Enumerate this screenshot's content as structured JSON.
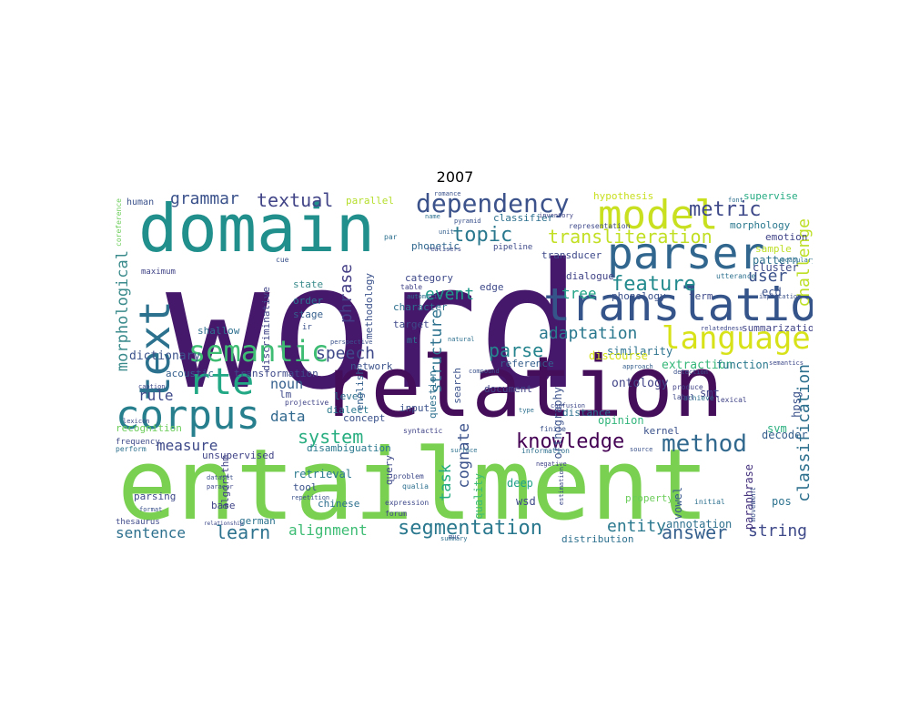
{
  "title": "2007",
  "words": [
    {
      "t": "word",
      "c": "#46186c"
    },
    {
      "t": "entailment",
      "c": "#7ad151"
    },
    {
      "t": "relation",
      "c": "#440e5b"
    },
    {
      "t": "domain",
      "c": "#21908d"
    },
    {
      "t": "translation",
      "c": "#35548a"
    },
    {
      "t": "parser",
      "c": "#31668e"
    },
    {
      "t": "model",
      "c": "#c8e020"
    },
    {
      "t": "corpus",
      "c": "#277f8e"
    },
    {
      "t": "text",
      "c": "#2c728e"
    },
    {
      "t": "rte",
      "c": "#22a884"
    },
    {
      "t": "language",
      "c": "#d8e219"
    },
    {
      "t": "semantic",
      "c": "#3fbc73"
    },
    {
      "t": "dependency",
      "c": "#3b528b"
    },
    {
      "t": "method",
      "c": "#31688e"
    },
    {
      "t": "transliteration",
      "c": "#c2df23"
    },
    {
      "t": "segmentation",
      "c": "#2a788e"
    },
    {
      "t": "knowledge",
      "c": "#440154"
    },
    {
      "t": "feature",
      "c": "#238a8d"
    },
    {
      "t": "metric",
      "c": "#3e4989"
    },
    {
      "t": "topic",
      "c": "#2a788e"
    },
    {
      "t": "textual",
      "c": "#414487"
    },
    {
      "t": "grammar",
      "c": "#3b528b"
    },
    {
      "t": "morphological",
      "c": "#3b8b8c"
    },
    {
      "t": "system",
      "c": "#28ae80"
    },
    {
      "t": "answer",
      "c": "#355f8d"
    },
    {
      "t": "learn",
      "c": "#2c728e"
    },
    {
      "t": "alignment",
      "c": "#3dbc74"
    },
    {
      "t": "sentence",
      "c": "#2d708e"
    },
    {
      "t": "measure",
      "c": "#3e4a89"
    },
    {
      "t": "parse",
      "c": "#25848e"
    },
    {
      "t": "speech",
      "c": "#3e4989"
    },
    {
      "t": "phrase",
      "c": "#433e85"
    },
    {
      "t": "event",
      "c": "#1f9a8a"
    },
    {
      "t": "adaptation",
      "c": "#2a788e"
    },
    {
      "t": "user",
      "c": "#3b528b"
    },
    {
      "t": "challenge",
      "c": "#bddf26"
    },
    {
      "t": "structure",
      "c": "#2c728e"
    },
    {
      "t": "cognate",
      "c": "#3b528b"
    },
    {
      "t": "task",
      "c": "#25ab82"
    },
    {
      "t": "entity",
      "c": "#2a788e"
    },
    {
      "t": "string",
      "c": "#3e4989"
    },
    {
      "t": "classification",
      "c": "#2d708e"
    },
    {
      "t": "tree",
      "c": "#20a386"
    },
    {
      "t": "data",
      "c": "#31688e"
    },
    {
      "t": "rule",
      "c": "#3e4989"
    },
    {
      "t": "noun",
      "c": "#355f8d"
    },
    {
      "t": "dictionary",
      "c": "#3b528b"
    },
    {
      "t": "extraction",
      "c": "#35b779"
    },
    {
      "t": "ontology",
      "c": "#414487"
    },
    {
      "t": "similarity",
      "c": "#2c728e"
    },
    {
      "t": "discourse",
      "c": "#d5e21a"
    },
    {
      "t": "opinion",
      "c": "#31b57b"
    },
    {
      "t": "orthography",
      "c": "#3b528b"
    },
    {
      "t": "retrieval",
      "c": "#2a788e"
    },
    {
      "t": "quality",
      "c": "#3dbc74"
    },
    {
      "t": "deep",
      "c": "#1fa188"
    },
    {
      "t": "wsd",
      "c": "#3e4989"
    },
    {
      "t": "paraphrase",
      "c": "#46337e"
    },
    {
      "t": "vowel",
      "c": "#38598c"
    },
    {
      "t": "annotation",
      "c": "#2d708e"
    },
    {
      "t": "hpsg",
      "c": "#3b528b"
    },
    {
      "t": "svm",
      "c": "#29af7f"
    },
    {
      "t": "decoder",
      "c": "#355f8d"
    },
    {
      "t": "pos",
      "c": "#2c728e"
    },
    {
      "t": "smt",
      "c": "#414487"
    },
    {
      "t": "function",
      "c": "#2a788e"
    },
    {
      "t": "ecd",
      "c": "#3b528b"
    },
    {
      "t": "pattern",
      "c": "#2d708e"
    },
    {
      "t": "cluster",
      "c": "#3e4989"
    },
    {
      "t": "sample",
      "c": "#bddf26"
    },
    {
      "t": "emotion",
      "c": "#414487"
    },
    {
      "t": "morphology",
      "c": "#2a788e"
    },
    {
      "t": "supervise",
      "c": "#25ab82"
    },
    {
      "t": "hypothesis",
      "c": "#c8e020"
    },
    {
      "t": "parallel",
      "c": "#b5de2b"
    },
    {
      "t": "classifier",
      "c": "#2d708e"
    },
    {
      "t": "phonetic",
      "c": "#31688e"
    },
    {
      "t": "transducer",
      "c": "#3e4989"
    },
    {
      "t": "dialogue",
      "c": "#414487"
    },
    {
      "t": "phonology",
      "c": "#3b528b"
    },
    {
      "t": "category",
      "c": "#3e4989"
    },
    {
      "t": "order",
      "c": "#2c728e"
    },
    {
      "t": "state",
      "c": "#3b8b8c"
    },
    {
      "t": "stage",
      "c": "#355f8d"
    },
    {
      "t": "shallow",
      "c": "#2d708e"
    },
    {
      "t": "acoustic",
      "c": "#355f8d"
    },
    {
      "t": "transformation",
      "c": "#3e4989"
    },
    {
      "t": "recognition",
      "c": "#6ccd5a"
    },
    {
      "t": "unsupervised",
      "c": "#414487"
    },
    {
      "t": "dialect",
      "c": "#2a788e"
    },
    {
      "t": "concept",
      "c": "#3b528b"
    },
    {
      "t": "lm",
      "c": "#3e4989"
    },
    {
      "t": "level",
      "c": "#2d708e"
    },
    {
      "t": "input",
      "c": "#3b528b"
    },
    {
      "t": "document",
      "c": "#414487"
    },
    {
      "t": "distance",
      "c": "#2d708e"
    },
    {
      "t": "kernel",
      "c": "#3b528b"
    },
    {
      "t": "disambiguation",
      "c": "#2a788e"
    },
    {
      "t": "parsing",
      "c": "#3e4989"
    },
    {
      "t": "base",
      "c": "#414487"
    },
    {
      "t": "german",
      "c": "#2c728e"
    },
    {
      "t": "tool",
      "c": "#3b528b"
    },
    {
      "t": "query",
      "c": "#3e4989"
    },
    {
      "t": "algorithm",
      "c": "#414487"
    },
    {
      "t": "chinese",
      "c": "#2d708e"
    },
    {
      "t": "network",
      "c": "#3b528b"
    },
    {
      "t": "english",
      "c": "#355f8d"
    },
    {
      "t": "target",
      "c": "#3e4989"
    },
    {
      "t": "character",
      "c": "#2d708e"
    },
    {
      "t": "methodology",
      "c": "#3b528b"
    },
    {
      "t": "discriminative",
      "c": "#414487"
    },
    {
      "t": "edge",
      "c": "#3e4989"
    },
    {
      "t": "question",
      "c": "#2d708e"
    },
    {
      "t": "search",
      "c": "#3b528b"
    },
    {
      "t": "reference",
      "c": "#355f8d"
    },
    {
      "t": "term",
      "c": "#3e4989"
    },
    {
      "t": "summarization",
      "c": "#414487"
    },
    {
      "t": "distribution",
      "c": "#2d708e"
    },
    {
      "t": "human",
      "c": "#3b528b"
    },
    {
      "t": "coreference",
      "c": "#6ccd5a"
    },
    {
      "t": "frequency",
      "c": "#3e4989"
    },
    {
      "t": "perform",
      "c": "#2d708e"
    },
    {
      "t": "format",
      "c": "#3b528b"
    },
    {
      "t": "maximum",
      "c": "#414487"
    },
    {
      "t": "thesaurus",
      "c": "#3e4989"
    },
    {
      "t": "mt",
      "c": "#2d708e"
    },
    {
      "t": "ir",
      "c": "#3b528b"
    },
    {
      "t": "pipeline",
      "c": "#3e4989"
    },
    {
      "t": "name",
      "c": "#2d708e"
    },
    {
      "t": "unit",
      "c": "#355f8d"
    },
    {
      "t": "romance",
      "c": "#3b528b"
    },
    {
      "t": "inventory",
      "c": "#414487"
    },
    {
      "t": "representation",
      "c": "#3e4989"
    },
    {
      "t": "utterance",
      "c": "#2d708e"
    },
    {
      "t": "implication",
      "c": "#3b528b"
    },
    {
      "t": "semantics",
      "c": "#3e4989"
    },
    {
      "t": "lexical",
      "c": "#414487"
    },
    {
      "t": "achieve",
      "c": "#2d708e"
    },
    {
      "t": "detection",
      "c": "#3b528b"
    },
    {
      "t": "approach",
      "c": "#355f8d"
    },
    {
      "t": "relatedness",
      "c": "#3e4989"
    },
    {
      "t": "information",
      "c": "#2d708e"
    },
    {
      "t": "source",
      "c": "#3b528b"
    },
    {
      "t": "estimation",
      "c": "#3e4989"
    },
    {
      "t": "syntactic",
      "c": "#414487"
    },
    {
      "t": "surface",
      "c": "#2d708e"
    },
    {
      "t": "compound",
      "c": "#3b528b"
    },
    {
      "t": "realisers",
      "c": "#3e4989"
    },
    {
      "t": "natural",
      "c": "#2d708e"
    },
    {
      "t": "perspective",
      "c": "#3b528b"
    },
    {
      "t": "projective",
      "c": "#414487"
    },
    {
      "t": "caption",
      "c": "#3e4989"
    },
    {
      "t": "par",
      "c": "#2d708e"
    },
    {
      "t": "cue",
      "c": "#3b528b"
    },
    {
      "t": "lexicon",
      "c": "#3e4989"
    },
    {
      "t": "table",
      "c": "#414487"
    },
    {
      "t": "automatic",
      "c": "#2d708e"
    },
    {
      "t": "pyramid",
      "c": "#3b528b"
    },
    {
      "t": "confusion",
      "c": "#3e4989"
    },
    {
      "t": "type",
      "c": "#2d708e"
    },
    {
      "t": "finite",
      "c": "#3b528b"
    },
    {
      "t": "negative",
      "c": "#414487"
    },
    {
      "t": "problem",
      "c": "#3e4989"
    },
    {
      "t": "qualia",
      "c": "#2d708e"
    },
    {
      "t": "repetition",
      "c": "#3b528b"
    },
    {
      "t": "expression",
      "c": "#3e4989"
    },
    {
      "t": "forum",
      "c": "#414487"
    },
    {
      "t": "summary",
      "c": "#2d708e"
    },
    {
      "t": "dataset",
      "c": "#3b528b"
    },
    {
      "t": "paraeor",
      "c": "#3e4989"
    },
    {
      "t": "property",
      "c": "#6ccd5a"
    },
    {
      "t": "initial",
      "c": "#2d708e"
    },
    {
      "t": "movement",
      "c": "#3b528b"
    },
    {
      "t": "label",
      "c": "#3e4989"
    },
    {
      "t": "produce",
      "c": "#414487"
    },
    {
      "t": "vocabulary",
      "c": "#2d708e"
    },
    {
      "t": "muc",
      "c": "#3b528b"
    },
    {
      "t": "relationship",
      "c": "#3e4989"
    },
    {
      "t": "font",
      "c": "#2d708e"
    }
  ]
}
